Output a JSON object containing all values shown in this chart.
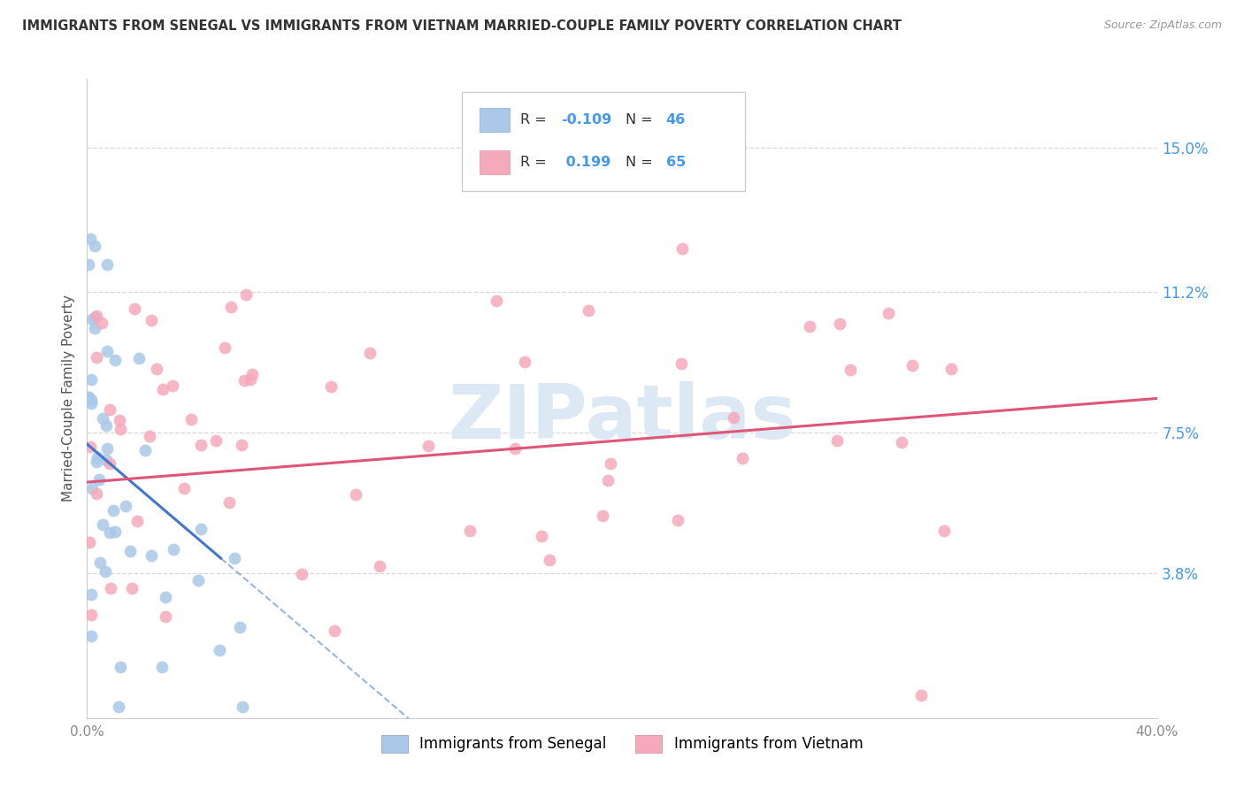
{
  "title": "IMMIGRANTS FROM SENEGAL VS IMMIGRANTS FROM VIETNAM MARRIED-COUPLE FAMILY POVERTY CORRELATION CHART",
  "source": "Source: ZipAtlas.com",
  "ylabel": "Married-Couple Family Poverty",
  "ytick_labels": [
    "3.8%",
    "7.5%",
    "11.2%",
    "15.0%"
  ],
  "ytick_values": [
    3.8,
    7.5,
    11.2,
    15.0
  ],
  "xmin": 0.0,
  "xmax": 40.0,
  "ymin": 0.0,
  "ymax": 16.8,
  "legend_r_senegal": "-0.109",
  "legend_n_senegal": "46",
  "legend_r_vietnam": "0.199",
  "legend_n_vietnam": "65",
  "senegal_color": "#aac8e8",
  "vietnam_color": "#f5aabb",
  "senegal_line_color": "#4477cc",
  "vietnam_line_color": "#dd5577",
  "grid_color": "#d8d8d8",
  "watermark_color": "#dde8f5",
  "blue_label_color": "#4499ee",
  "title_color": "#333333",
  "source_color": "#999999",
  "ylabel_color": "#555555",
  "axis_tick_color": "#888888",
  "N_senegal": 46,
  "N_vietnam": 65,
  "senegal_slope": -0.6,
  "senegal_intercept": 7.2,
  "vietnam_slope": 0.055,
  "vietnam_intercept": 6.2
}
